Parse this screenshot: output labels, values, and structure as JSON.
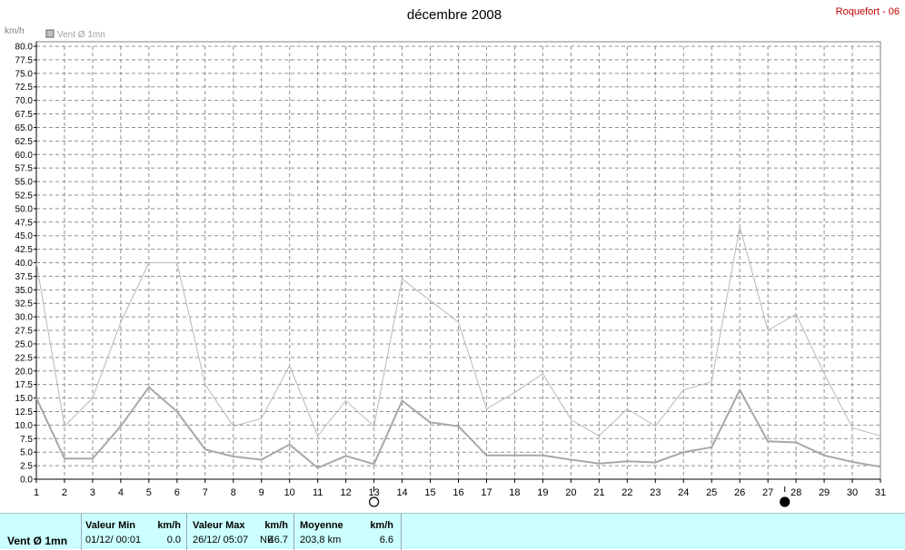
{
  "chart_data": {
    "type": "line",
    "title": "décembre 2008",
    "location": "Roquefort - 06",
    "ylabel": "km/h",
    "legend": "Vent Ø 1mn",
    "legend_color": "#c0c0c0",
    "ylim": [
      0,
      80
    ],
    "ystep": 2.5,
    "yticks": [
      "0.0",
      "2.5",
      "5.0",
      "7.5",
      "10.0",
      "12.5",
      "15.0",
      "17.5",
      "20.0",
      "22.5",
      "25.0",
      "27.5",
      "30.0",
      "32.5",
      "35.0",
      "37.5",
      "40.0",
      "42.5",
      "45.0",
      "47.5",
      "50.0",
      "52.5",
      "55.0",
      "57.5",
      "60.0",
      "62.5",
      "65.0",
      "67.5",
      "70.0",
      "72.5",
      "75.0",
      "77.5",
      "80.0"
    ],
    "x": [
      1,
      2,
      3,
      4,
      5,
      6,
      7,
      8,
      9,
      10,
      11,
      12,
      13,
      14,
      15,
      16,
      17,
      18,
      19,
      20,
      21,
      22,
      23,
      24,
      25,
      26,
      27,
      28,
      29,
      30,
      31
    ],
    "xticks": [
      "1",
      "2",
      "3",
      "4",
      "5",
      "6",
      "7",
      "8",
      "9",
      "10",
      "11",
      "12",
      "13",
      "14",
      "15",
      "16",
      "17",
      "18",
      "19",
      "20",
      "21",
      "22",
      "23",
      "24",
      "25",
      "26",
      "27",
      "28",
      "29",
      "30",
      "31"
    ],
    "grid": true,
    "series": [
      {
        "values": [
          40.0,
          9.8,
          15.0,
          29.0,
          40.0,
          40.0,
          17.5,
          9.8,
          11.2,
          21.0,
          8.0,
          14.5,
          9.8,
          37.0,
          33.0,
          29.0,
          13.0,
          16.0,
          19.5,
          11.0,
          8.0,
          13.0,
          9.8,
          16.5,
          18.0,
          46.7,
          27.5,
          30.5,
          19.5,
          9.5,
          8.0
        ],
        "color": "#b8b8b8",
        "width": 1
      },
      {
        "values": [
          15.0,
          3.8,
          3.8,
          9.8,
          17.0,
          12.5,
          5.5,
          4.2,
          3.6,
          6.4,
          2.1,
          4.3,
          2.8,
          14.5,
          10.5,
          9.8,
          4.4,
          4.4,
          4.4,
          3.6,
          2.9,
          3.3,
          3.1,
          5.0,
          5.9,
          16.5,
          7.0,
          6.8,
          4.4,
          3.2,
          2.3
        ],
        "color": "#a8a8a8",
        "width": 2
      }
    ],
    "moon_phases": [
      {
        "x": 13,
        "phase": "full-moon"
      },
      {
        "x": 27.6,
        "phase": "new-moon"
      }
    ]
  },
  "footer": {
    "label": "Vent Ø 1mn",
    "min": {
      "title": "Valeur Min",
      "unit": "km/h",
      "date": "01/12/  00:01",
      "value": "0.0"
    },
    "max": {
      "title": "Valeur Max",
      "unit": "km/h",
      "date": "26/12/  05:07",
      "dir": "NE",
      "value": "46.7"
    },
    "avg": {
      "title": "Moyenne",
      "unit": "km/h",
      "distance": "203,8 km",
      "value": "6.6"
    }
  }
}
